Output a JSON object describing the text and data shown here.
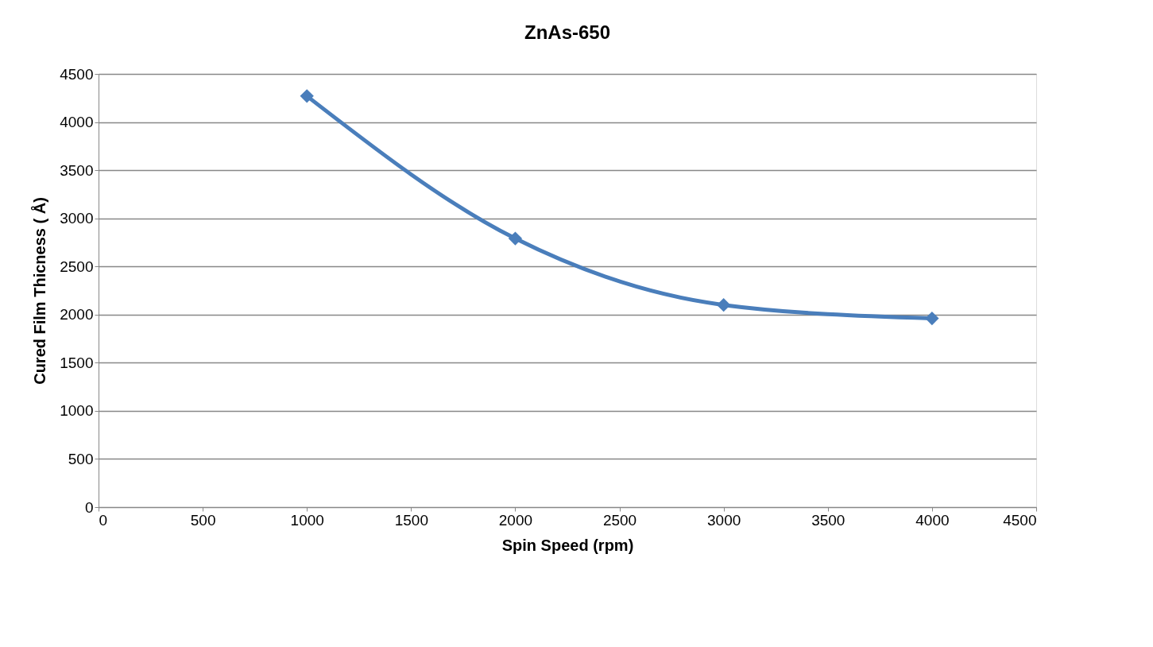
{
  "chart_data": {
    "type": "line",
    "title": "ZnAs-650",
    "xlabel": "Spin Speed (rpm)",
    "ylabel": "Cured Film Thicness ( Å)",
    "x": [
      1000,
      2000,
      3000,
      4000
    ],
    "series": [
      {
        "color": "#4a7ebb",
        "values": [
          4270,
          2790,
          2100,
          1960
        ]
      }
    ],
    "xlim": [
      0,
      4500
    ],
    "xticks": [
      0,
      500,
      1000,
      1500,
      2000,
      2500,
      3000,
      3500,
      4000,
      4500
    ],
    "ylim": [
      0,
      4500
    ],
    "yticks": [
      0,
      500,
      1000,
      1500,
      2000,
      2500,
      3000,
      3500,
      4000,
      4500
    ],
    "grid": "y",
    "marker": "diamond"
  }
}
